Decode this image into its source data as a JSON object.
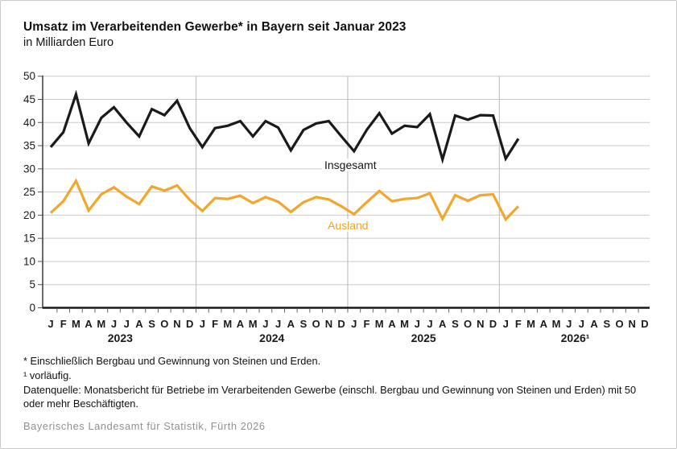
{
  "header": {
    "title": "Umsatz im Verarbeitenden Gewerbe* in Bayern seit Januar 2023",
    "subtitle": "in Milliarden Euro"
  },
  "footnotes": [
    "* Einschließlich Bergbau und Gewinnung von Steinen und Erden.",
    "¹ vorläufig.",
    "Datenquelle: Monatsbericht für Betriebe im Verarbeitenden Gewerbe (einschl. Bergbau und Gewinnung von Steinen und Erden) mit 50 oder mehr Beschäftigten."
  ],
  "source": "Bayerisches Landesamt für Statistik, Fürth 2026",
  "colors": {
    "total_line": "#1a1a1a",
    "foreign_line": "#f3a62d",
    "gridline": "#c9c9c9",
    "year_separator": "#c2c2c2",
    "axis": "#1a1a1a",
    "source_text": "#909090"
  },
  "chart_data": {
    "type": "line",
    "title": "Umsatz im Verarbeitenden Gewerbe in Bayern seit Januar 2023",
    "ylabel": "Milliarden Euro",
    "ylim": [
      0,
      50
    ],
    "yticks": [
      0,
      5,
      10,
      15,
      20,
      25,
      30,
      35,
      40,
      45,
      50
    ],
    "grid": "horizontal",
    "months_per_year": [
      "J",
      "F",
      "M",
      "A",
      "M",
      "J",
      "J",
      "A",
      "S",
      "O",
      "N",
      "D"
    ],
    "x_years": [
      "2023",
      "2024",
      "2025",
      "2026¹"
    ],
    "series": [
      {
        "name": "Insgesamt",
        "color": "#1a1a1a",
        "values": [
          34.7,
          37.9,
          46.1,
          35.5,
          41.0,
          43.3,
          40.0,
          37.0,
          42.9,
          41.6,
          44.7,
          38.8,
          34.7,
          38.8,
          39.3,
          40.3,
          37.0,
          40.3,
          38.9,
          34.0,
          38.4,
          39.8,
          40.3,
          37.0,
          33.8,
          38.4,
          42.0,
          37.6,
          39.3,
          39.0,
          41.8,
          32.0,
          41.5,
          40.6,
          41.6,
          41.5,
          32.2,
          36.5
        ]
      },
      {
        "name": "Ausland",
        "color": "#f3a62d",
        "values": [
          20.5,
          23.0,
          27.4,
          21.0,
          24.5,
          26.0,
          24.0,
          22.4,
          26.2,
          25.3,
          26.4,
          23.3,
          20.9,
          23.7,
          23.5,
          24.2,
          22.6,
          23.9,
          22.9,
          20.7,
          22.8,
          23.9,
          23.4,
          21.9,
          20.2,
          22.8,
          25.2,
          23.0,
          23.5,
          23.7,
          24.7,
          19.2,
          24.3,
          23.1,
          24.3,
          24.5,
          19.1,
          21.9
        ]
      }
    ]
  }
}
